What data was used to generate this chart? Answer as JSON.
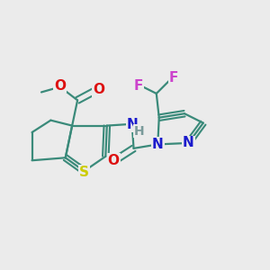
{
  "bg_color": "#ebebeb",
  "atom_colors": {
    "C": "#3a8a7a",
    "H": "#7a9a9a",
    "N": "#1a1acc",
    "O": "#dd1111",
    "S": "#cccc00",
    "F_left": "#cc44cc",
    "F_right": "#cc44cc"
  },
  "bond_color": "#3a8a7a",
  "font_size": 11
}
